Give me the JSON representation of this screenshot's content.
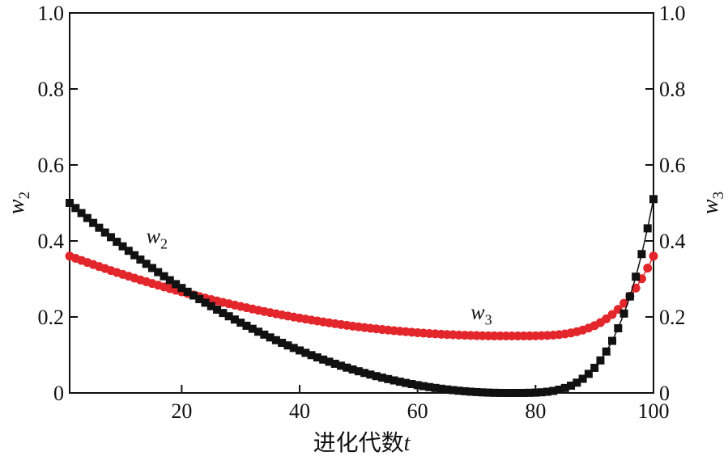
{
  "chart_data": {
    "type": "scatter",
    "xlabel_prefix": "进化代数",
    "xlabel_var": "t",
    "ylabel_left": {
      "base": "w",
      "sub": "2"
    },
    "ylabel_right": {
      "base": "w",
      "sub": "3"
    },
    "xlim": [
      1,
      100
    ],
    "ylim": [
      0,
      1.0
    ],
    "x_ticks": [
      "20",
      "40",
      "60",
      "80",
      "100"
    ],
    "x_tick_values": [
      20,
      40,
      60,
      80,
      100
    ],
    "y_ticks_left": [
      "0",
      "0.2",
      "0.4",
      "0.6",
      "0.8",
      "1.0"
    ],
    "y_ticks_right": [
      "0",
      "0.2",
      "0.4",
      "0.6",
      "0.8",
      "1.0"
    ],
    "y_tick_values": [
      0,
      0.2,
      0.4,
      0.6,
      0.8,
      1.0
    ],
    "grid": false,
    "series": [
      {
        "name": "w2",
        "label_base": "w",
        "label_sub": "2",
        "marker": "square",
        "color": "#111111",
        "model": {
          "start_x": 1,
          "start_y": 0.5,
          "min_x": 75,
          "min_y": 0.0,
          "end_x": 100,
          "end_y": 0.51
        },
        "label_at": {
          "x": 14,
          "y": 0.395
        }
      },
      {
        "name": "w3",
        "label_base": "w",
        "label_sub": "3",
        "marker": "circle",
        "color": "#e3262b",
        "model": {
          "start_x": 1,
          "start_y": 0.36,
          "min_x": 75,
          "min_y": 0.15,
          "end_x": 100,
          "end_y": 0.36
        },
        "label_at": {
          "x": 69,
          "y": 0.195
        }
      }
    ]
  }
}
